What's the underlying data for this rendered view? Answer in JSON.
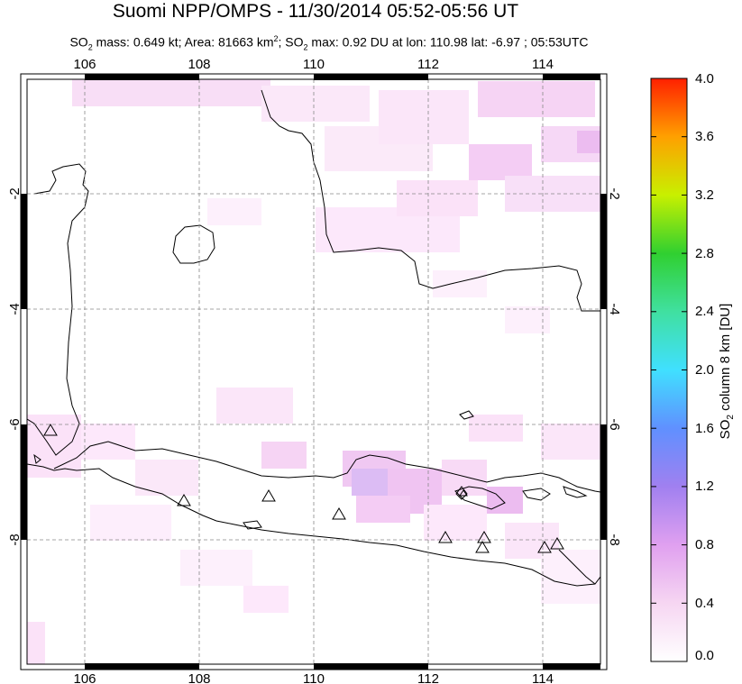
{
  "title": "Suomi NPP/OMPS - 11/30/2014 05:52-05:56 UT",
  "subtitle": {
    "p1": "SO",
    "p1_sub": "2",
    "p2": " mass: 0.649 kt; Area: 81663 km",
    "p2_sup": "2",
    "p3": "; SO",
    "p3_sub": "2",
    "p4": " max: 0.92 DU at lon: 110.98 lat: -6.97 ; 05:53UTC"
  },
  "map": {
    "lon_ticks": [
      "106",
      "108",
      "110",
      "112",
      "114"
    ],
    "lat_ticks": [
      "-2",
      "-4",
      "-6",
      "-8"
    ],
    "lon_range": [
      105,
      115
    ],
    "lat_range": [
      -10,
      0
    ],
    "grid": "dashed",
    "volcano_count": 11
  },
  "colorbar": {
    "label_main": "SO",
    "label_sub": "2",
    "label_rest": " column 8 km [DU]",
    "ticks": [
      "4.0",
      "3.6",
      "3.2",
      "2.8",
      "2.4",
      "2.0",
      "1.6",
      "1.2",
      "0.8",
      "0.4",
      "0.0"
    ],
    "range": [
      0,
      4.0
    ],
    "colors": [
      "#ffffff",
      "#f2c8f0",
      "#c080f0",
      "#8080f0",
      "#40c0ff",
      "#40ffff",
      "#40e090",
      "#40d000",
      "#c8ff00",
      "#ffcc00",
      "#ff8000",
      "#ff2000"
    ]
  }
}
